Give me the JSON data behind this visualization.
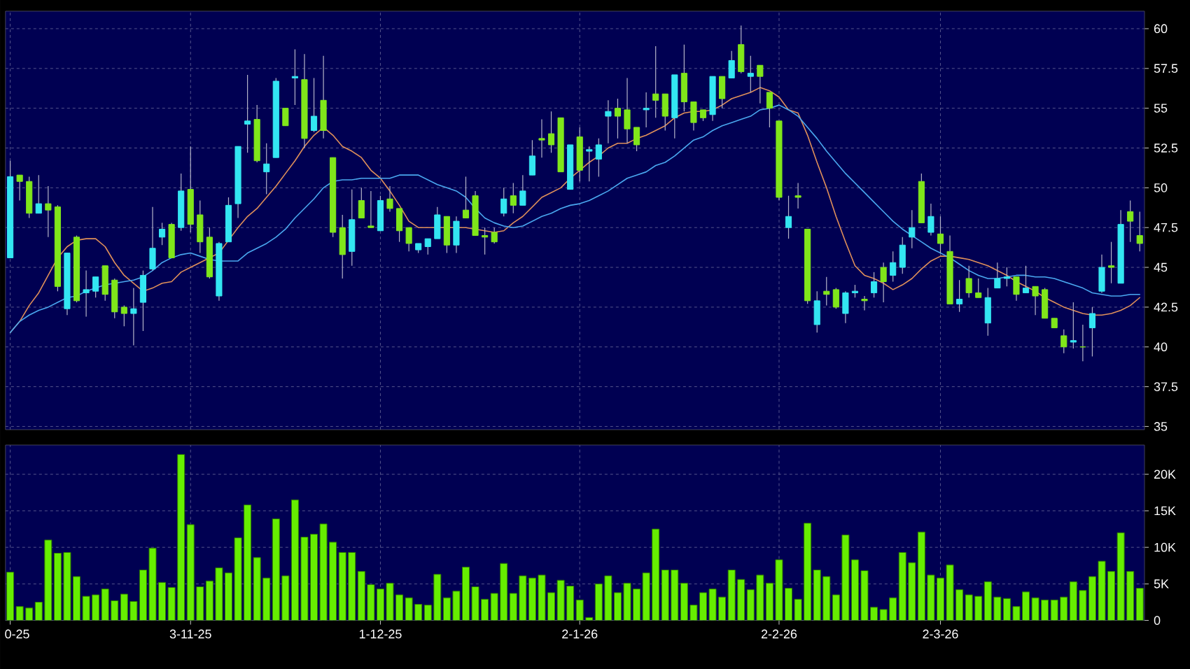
{
  "chart_data": [
    {
      "type": "candlestick",
      "categories": [
        null,
        null,
        null,
        null,
        null,
        null,
        null,
        null,
        null,
        null,
        null,
        null,
        null,
        null,
        null,
        null,
        null,
        null,
        null,
        null,
        null,
        null,
        null,
        null,
        null,
        null,
        null,
        null,
        null,
        null,
        null,
        null,
        null,
        null,
        null,
        null,
        null,
        null,
        null,
        null,
        null,
        null,
        null,
        null,
        null,
        null,
        null,
        null,
        null,
        null,
        null,
        null,
        null,
        null,
        null,
        null,
        null,
        null,
        null,
        null,
        null,
        null,
        null,
        null,
        null,
        null,
        null,
        null,
        null,
        null,
        null,
        null,
        null,
        null,
        null,
        null,
        null,
        null,
        null,
        null,
        null,
        null,
        null,
        null,
        null,
        null,
        null,
        null,
        null,
        null,
        null,
        null,
        null,
        null,
        null,
        null,
        null,
        null,
        null,
        null,
        null,
        null,
        null,
        null,
        null,
        null,
        null,
        null,
        null,
        null,
        null,
        null,
        null,
        null,
        null,
        null,
        null,
        null,
        null,
        null
      ],
      "ohlc": [
        [
          45.6,
          51.7,
          45.6,
          50.7
        ],
        [
          50.8,
          50.8,
          49.2,
          50.4
        ],
        [
          50.4,
          50.7,
          48.1,
          48.4
        ],
        [
          48.4,
          50.8,
          48.4,
          49.0
        ],
        [
          49.0,
          50.1,
          46.9,
          48.6
        ],
        [
          48.8,
          48.9,
          43.5,
          43.8
        ],
        [
          42.4,
          45.9,
          42.0,
          45.9
        ],
        [
          46.9,
          47.0,
          42.8,
          42.9
        ],
        [
          43.4,
          44.8,
          41.9,
          43.6
        ],
        [
          43.5,
          44.4,
          43.1,
          44.4
        ],
        [
          45.1,
          45.1,
          42.9,
          43.3
        ],
        [
          44.2,
          44.3,
          41.8,
          42.2
        ],
        [
          42.5,
          42.6,
          41.3,
          42.1
        ],
        [
          42.1,
          43.7,
          40.1,
          42.4
        ],
        [
          42.8,
          44.8,
          41.0,
          44.5
        ],
        [
          44.9,
          48.8,
          44.8,
          46.2
        ],
        [
          46.9,
          47.8,
          46.4,
          47.4
        ],
        [
          47.7,
          47.8,
          45.6,
          45.6
        ],
        [
          47.5,
          50.9,
          47.3,
          49.8
        ],
        [
          49.9,
          52.6,
          47.2,
          47.7
        ],
        [
          48.3,
          49.2,
          45.9,
          46.6
        ],
        [
          46.9,
          47.5,
          44.3,
          44.4
        ],
        [
          43.2,
          46.6,
          42.9,
          46.5
        ],
        [
          46.6,
          49.4,
          46.6,
          48.9
        ],
        [
          49.0,
          52.6,
          48.1,
          52.6
        ],
        [
          54.0,
          57.1,
          52.2,
          54.2
        ],
        [
          54.3,
          55.2,
          51.6,
          51.7
        ],
        [
          51.0,
          52.8,
          49.6,
          51.5
        ],
        [
          51.9,
          56.9,
          51.9,
          56.7
        ],
        [
          55.0,
          55.0,
          53.9,
          53.9
        ],
        [
          56.9,
          58.7,
          55.2,
          57.0
        ],
        [
          56.8,
          58.4,
          52.5,
          53.1
        ],
        [
          53.6,
          56.9,
          53.5,
          54.5
        ],
        [
          55.5,
          58.3,
          53.1,
          53.6
        ],
        [
          51.9,
          51.9,
          46.9,
          47.2
        ],
        [
          47.5,
          48.3,
          44.3,
          45.8
        ],
        [
          46.0,
          49.9,
          45.1,
          48.0
        ],
        [
          49.2,
          50.0,
          48.1,
          48.1
        ],
        [
          47.6,
          49.8,
          47.5,
          47.5
        ],
        [
          47.3,
          49.5,
          47.3,
          49.2
        ],
        [
          49.3,
          50.1,
          48.5,
          48.7
        ],
        [
          48.7,
          48.7,
          46.6,
          47.3
        ],
        [
          47.5,
          47.5,
          46.0,
          46.5
        ],
        [
          46.1,
          46.5,
          45.9,
          46.5
        ],
        [
          46.3,
          46.8,
          45.8,
          46.8
        ],
        [
          46.8,
          48.8,
          46.8,
          48.3
        ],
        [
          48.2,
          48.2,
          45.9,
          46.4
        ],
        [
          46.4,
          48.2,
          45.9,
          47.9
        ],
        [
          48.6,
          50.7,
          48.1,
          48.1
        ],
        [
          49.5,
          49.8,
          47.0,
          47.0
        ],
        [
          47.0,
          47.5,
          45.8,
          46.9
        ],
        [
          47.2,
          47.5,
          46.5,
          46.6
        ],
        [
          48.4,
          50.0,
          48.2,
          49.3
        ],
        [
          49.5,
          50.3,
          48.4,
          48.9
        ],
        [
          48.9,
          50.8,
          48.9,
          49.8
        ],
        [
          50.8,
          53.0,
          50.8,
          52.0
        ],
        [
          53.1,
          54.3,
          51.9,
          53.0
        ],
        [
          53.4,
          54.8,
          52.2,
          52.7
        ],
        [
          54.4,
          54.4,
          51.0,
          51.0
        ],
        [
          49.9,
          52.7,
          49.9,
          52.7
        ],
        [
          53.2,
          53.8,
          50.4,
          51.1
        ],
        [
          52.3,
          52.6,
          50.4,
          52.4
        ],
        [
          51.8,
          53.1,
          50.7,
          52.7
        ],
        [
          54.5,
          55.5,
          52.8,
          54.8
        ],
        [
          55.0,
          55.6,
          53.1,
          54.5
        ],
        [
          54.9,
          56.9,
          52.8,
          53.7
        ],
        [
          53.8,
          53.8,
          52.3,
          52.7
        ],
        [
          54.9,
          56.0,
          53.8,
          55.0
        ],
        [
          55.9,
          58.9,
          54.4,
          55.5
        ],
        [
          55.9,
          55.9,
          53.6,
          54.5
        ],
        [
          54.4,
          57.1,
          53.1,
          57.1
        ],
        [
          57.2,
          59.0,
          54.8,
          55.4
        ],
        [
          55.4,
          55.4,
          53.6,
          54.1
        ],
        [
          54.9,
          54.9,
          54.2,
          54.4
        ],
        [
          54.6,
          57.0,
          54.2,
          57.0
        ],
        [
          57.0,
          57.0,
          55.0,
          55.6
        ],
        [
          56.9,
          58.6,
          56.9,
          58.0
        ],
        [
          59.0,
          60.2,
          57.2,
          57.3
        ],
        [
          57.0,
          58.3,
          56.0,
          57.2
        ],
        [
          57.7,
          57.7,
          55.3,
          57.0
        ],
        [
          56.0,
          56.0,
          53.8,
          55.0
        ],
        [
          54.2,
          54.2,
          49.2,
          49.4
        ],
        [
          47.5,
          49.5,
          46.8,
          48.2
        ],
        [
          49.5,
          50.3,
          48.7,
          49.4
        ],
        [
          47.4,
          47.4,
          42.7,
          42.9
        ],
        [
          41.4,
          43.5,
          40.9,
          42.9
        ],
        [
          43.5,
          44.4,
          42.6,
          43.3
        ],
        [
          43.6,
          43.7,
          42.4,
          42.5
        ],
        [
          42.1,
          43.5,
          41.5,
          43.4
        ],
        [
          43.4,
          43.9,
          43.1,
          43.5
        ],
        [
          43.0,
          43.2,
          42.3,
          42.9
        ],
        [
          43.4,
          44.7,
          43.1,
          44.1
        ],
        [
          45.0,
          45.3,
          42.8,
          44.1
        ],
        [
          44.5,
          46.0,
          44.1,
          45.3
        ],
        [
          45.0,
          46.9,
          44.6,
          46.4
        ],
        [
          46.9,
          48.6,
          46.2,
          47.5
        ],
        [
          50.4,
          50.9,
          47.8,
          47.8
        ],
        [
          47.2,
          49.0,
          47.0,
          48.2
        ],
        [
          47.1,
          48.2,
          45.9,
          46.5
        ],
        [
          46.0,
          47.0,
          42.7,
          42.7
        ],
        [
          42.7,
          44.2,
          42.2,
          43.0
        ],
        [
          44.3,
          45.1,
          43.1,
          43.4
        ],
        [
          43.4,
          44.3,
          43.1,
          43.1
        ],
        [
          41.5,
          43.7,
          40.7,
          43.1
        ],
        [
          43.7,
          45.3,
          43.7,
          44.3
        ],
        [
          44.3,
          45.0,
          43.8,
          44.4
        ],
        [
          44.4,
          44.4,
          42.9,
          43.3
        ],
        [
          43.4,
          45.1,
          43.4,
          43.7
        ],
        [
          43.8,
          43.8,
          42.0,
          43.2
        ],
        [
          43.6,
          43.7,
          41.8,
          41.8
        ],
        [
          41.8,
          41.8,
          41.2,
          41.2
        ],
        [
          40.7,
          41.1,
          39.6,
          40.0
        ],
        [
          40.3,
          42.8,
          39.9,
          40.4
        ],
        [
          40.0,
          41.4,
          39.1,
          40.0
        ],
        [
          41.2,
          42.5,
          39.4,
          42.1
        ],
        [
          43.5,
          45.8,
          43.4,
          45.0
        ],
        [
          45.1,
          46.6,
          44.0,
          45.0
        ],
        [
          44.0,
          48.6,
          44.0,
          47.7
        ],
        [
          48.5,
          49.2,
          46.6,
          47.9
        ],
        [
          47.0,
          48.5,
          46.0,
          46.5
        ]
      ],
      "colors": [
        "#33e6f2",
        "#80e61a",
        "#80e61a",
        "#33e6f2",
        "#80e61a",
        "#80e61a",
        "#33e6f2",
        "#80e61a",
        "#33e6f2",
        "#33e6f2",
        "#80e61a",
        "#80e61a",
        "#80e61a",
        "#33e6f2",
        "#33e6f2",
        "#33e6f2",
        "#33e6f2",
        "#80e61a",
        "#33e6f2",
        "#80e61a",
        "#80e61a",
        "#80e61a",
        "#33e6f2",
        "#33e6f2",
        "#33e6f2",
        "#33e6f2",
        "#80e61a",
        "#33e6f2",
        "#33e6f2",
        "#80e61a",
        "#33e6f2",
        "#80e61a",
        "#33e6f2",
        "#80e61a",
        "#80e61a",
        "#80e61a",
        "#33e6f2",
        "#80e61a",
        "#80e61a",
        "#33e6f2",
        "#80e61a",
        "#80e61a",
        "#80e61a",
        "#33e6f2",
        "#33e6f2",
        "#33e6f2",
        "#80e61a",
        "#33e6f2",
        "#80e61a",
        "#80e61a",
        "#80e61a",
        "#80e61a",
        "#33e6f2",
        "#80e61a",
        "#33e6f2",
        "#33e6f2",
        "#80e61a",
        "#80e61a",
        "#80e61a",
        "#33e6f2",
        "#80e61a",
        "#33e6f2",
        "#33e6f2",
        "#33e6f2",
        "#80e61a",
        "#80e61a",
        "#80e61a",
        "#33e6f2",
        "#80e61a",
        "#80e61a",
        "#33e6f2",
        "#80e61a",
        "#80e61a",
        "#80e61a",
        "#33e6f2",
        "#80e61a",
        "#33e6f2",
        "#80e61a",
        "#33e6f2",
        "#80e61a",
        "#80e61a",
        "#80e61a",
        "#33e6f2",
        "#80e61a",
        "#80e61a",
        "#33e6f2",
        "#80e61a",
        "#80e61a",
        "#33e6f2",
        "#33e6f2",
        "#80e61a",
        "#33e6f2",
        "#80e61a",
        "#33e6f2",
        "#33e6f2",
        "#33e6f2",
        "#80e61a",
        "#33e6f2",
        "#80e61a",
        "#80e61a",
        "#33e6f2",
        "#80e61a",
        "#80e61a",
        "#33e6f2",
        "#33e6f2",
        "#33e6f2",
        "#80e61a",
        "#33e6f2",
        "#80e61a",
        "#80e61a",
        "#80e61a",
        "#80e61a",
        "#33e6f2",
        "#80e61a",
        "#33e6f2",
        "#33e6f2",
        "#80e61a",
        "#33e6f2",
        "#80e61a",
        "#80e61a"
      ],
      "series": [
        {
          "type": "line",
          "color": "#e0905a",
          "values": [
            40.9,
            41.6,
            42.6,
            43.4,
            44.5,
            45.6,
            46.3,
            46.7,
            46.8,
            46.8,
            46.3,
            45.3,
            44.5,
            44.0,
            43.5,
            43.7,
            44.0,
            44.1,
            44.7,
            45.0,
            45.3,
            45.6,
            45.9,
            46.7,
            47.5,
            48.2,
            48.7,
            49.4,
            50.1,
            50.9,
            51.7,
            52.6,
            53.3,
            53.8,
            53.3,
            52.6,
            52.3,
            51.9,
            51.1,
            50.6,
            49.8,
            48.9,
            47.9,
            47.5,
            47.5,
            47.5,
            47.5,
            47.5,
            47.5,
            47.4,
            47.3,
            47.2,
            47.3,
            47.8,
            48.2,
            48.8,
            49.4,
            49.7,
            50.0,
            50.6,
            51.1,
            51.6,
            52.0,
            52.5,
            52.8,
            52.8,
            53.1,
            53.3,
            53.6,
            53.9,
            54.4,
            54.7,
            54.8,
            54.8,
            54.9,
            55.2,
            55.6,
            55.8,
            56.0,
            56.3,
            56.1,
            55.7,
            54.9,
            54.7,
            53.3,
            51.6,
            50.0,
            48.2,
            46.6,
            45.1,
            44.5,
            44.3,
            44.0,
            43.6,
            43.9,
            44.3,
            44.9,
            45.4,
            45.7,
            45.7,
            45.6,
            45.5,
            45.3,
            45.1,
            44.8,
            44.5,
            44.1,
            43.8,
            43.5,
            43.1,
            42.8,
            42.5,
            42.3,
            42.1,
            42.0,
            42.0,
            42.1,
            42.3,
            42.6,
            43.1
          ]
        },
        {
          "type": "line",
          "color": "#4aa8f0",
          "values": [
            40.9,
            41.6,
            42.0,
            42.3,
            42.5,
            42.8,
            43.1,
            43.2,
            43.5,
            43.7,
            43.9,
            44.0,
            44.1,
            44.2,
            44.4,
            44.8,
            45.3,
            45.6,
            45.8,
            45.9,
            45.7,
            45.5,
            45.4,
            45.4,
            45.4,
            45.9,
            46.2,
            46.5,
            46.9,
            47.4,
            48.1,
            48.7,
            49.3,
            50.0,
            50.4,
            50.5,
            50.5,
            50.6,
            50.6,
            50.6,
            50.6,
            50.8,
            50.8,
            50.8,
            50.5,
            50.2,
            50.0,
            49.8,
            49.4,
            48.7,
            48.1,
            47.8,
            47.6,
            47.5,
            47.6,
            47.9,
            48.2,
            48.4,
            48.7,
            48.9,
            49.0,
            49.2,
            49.5,
            49.8,
            50.2,
            50.6,
            50.8,
            51.0,
            51.4,
            51.6,
            52.0,
            52.5,
            53.0,
            53.2,
            53.6,
            53.9,
            54.1,
            54.3,
            54.5,
            54.9,
            55.0,
            55.2,
            54.9,
            54.5,
            53.8,
            53.1,
            52.3,
            51.6,
            50.9,
            50.3,
            49.7,
            49.1,
            48.5,
            47.9,
            47.4,
            47.0,
            46.6,
            46.2,
            45.9,
            45.6,
            45.2,
            44.8,
            44.5,
            44.3,
            44.3,
            44.4,
            44.5,
            44.5,
            44.4,
            44.4,
            44.3,
            44.1,
            43.9,
            43.7,
            43.4,
            43.3,
            43.2,
            43.2,
            43.3,
            43.3
          ]
        }
      ],
      "ylim": [
        34.8,
        61.1
      ],
      "yticks": [
        35,
        37.5,
        40,
        42.5,
        45,
        47.5,
        50,
        52.5,
        55,
        57.5,
        60
      ],
      "grid": true,
      "tick_labels": "y"
    },
    {
      "type": "bar",
      "categories": [
        "0-25",
        null,
        null,
        null,
        null,
        null,
        null,
        null,
        null,
        null,
        null,
        null,
        null,
        null,
        null,
        null,
        null,
        null,
        null,
        "3-11-25",
        null,
        null,
        null,
        null,
        null,
        null,
        null,
        null,
        null,
        null,
        null,
        null,
        null,
        null,
        null,
        null,
        null,
        null,
        null,
        "1-12-25",
        null,
        null,
        null,
        null,
        null,
        null,
        null,
        null,
        null,
        null,
        null,
        null,
        null,
        null,
        null,
        null,
        null,
        null,
        null,
        null,
        "2-1-26",
        null,
        null,
        null,
        null,
        null,
        null,
        null,
        null,
        null,
        null,
        null,
        null,
        null,
        null,
        null,
        null,
        null,
        null,
        null,
        null,
        "2-2-26",
        null,
        null,
        null,
        null,
        null,
        null,
        null,
        null,
        null,
        null,
        null,
        null,
        null,
        null,
        null,
        null,
        "2-3-26",
        null,
        null,
        null,
        null,
        null,
        null,
        null,
        null,
        null,
        null,
        null,
        null,
        null,
        null,
        null,
        null,
        null,
        null,
        null,
        null,
        null
      ],
      "values": [
        6600,
        1900,
        1700,
        2500,
        11000,
        9200,
        9300,
        6000,
        3300,
        3500,
        4300,
        2700,
        3600,
        2600,
        6900,
        9900,
        5200,
        4500,
        22700,
        13100,
        4600,
        5400,
        7200,
        6500,
        11300,
        15800,
        8600,
        5800,
        13900,
        6100,
        16500,
        11400,
        11800,
        13200,
        10700,
        9300,
        9300,
        6700,
        4900,
        4300,
        5100,
        3500,
        3100,
        2200,
        2100,
        6300,
        3100,
        4000,
        7300,
        4600,
        2900,
        3700,
        7800,
        3700,
        6100,
        5800,
        6200,
        3800,
        5500,
        4700,
        2800,
        400,
        5000,
        6100,
        3800,
        5100,
        4300,
        6500,
        12500,
        6900,
        6900,
        5100,
        2100,
        3800,
        4300,
        3200,
        6900,
        5600,
        4200,
        6200,
        5100,
        8300,
        4400,
        2900,
        13300,
        6900,
        6000,
        3500,
        11700,
        8300,
        6800,
        1800,
        1500,
        3100,
        9300,
        7900,
        12100,
        6200,
        5800,
        7600,
        4200,
        3500,
        3300,
        5300,
        3200,
        3000,
        1900,
        3900,
        3100,
        2800,
        2800,
        3200,
        5300,
        4100,
        6000,
        8100,
        6700,
        12000,
        6700,
        4400
      ],
      "color": "#66ee00",
      "ylim": [
        0,
        24000
      ],
      "yticks": [
        0,
        {
          "value": 5000,
          "label": "5K"
        },
        {
          "value": 10000,
          "label": "10K"
        },
        {
          "value": 15000,
          "label": "15K"
        },
        {
          "value": 20000,
          "label": "20K"
        }
      ],
      "grid": true
    }
  ]
}
